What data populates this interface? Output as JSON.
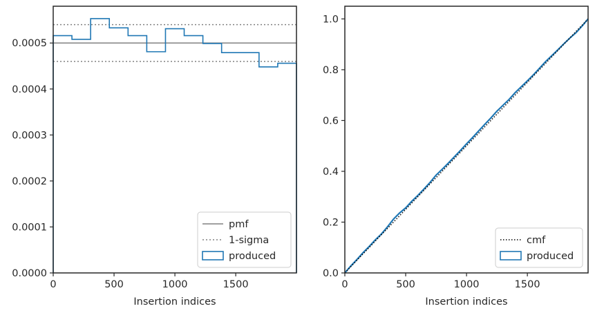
{
  "chart_data": [
    {
      "type": "line",
      "xlabel": "Insertion indices",
      "ylabel": "",
      "xlim": [
        0,
        1999
      ],
      "ylim": [
        0,
        0.00058
      ],
      "x_ticks": [
        0,
        500,
        1000,
        1500
      ],
      "x_tick_labels": [
        "0",
        "500",
        "1000",
        "1500"
      ],
      "y_ticks": [
        0,
        0.0001,
        0.0002,
        0.0003,
        0.0004,
        0.0005
      ],
      "y_tick_labels": [
        "0.0000",
        "0.0001",
        "0.0002",
        "0.0003",
        "0.0004",
        "0.0005"
      ],
      "grid": false,
      "legend": {
        "location": "lower-right",
        "entries": [
          "pmf",
          "1-sigma",
          "produced"
        ]
      },
      "pmf": {
        "name": "pmf",
        "value": 0.0005,
        "color": "#808080"
      },
      "sigma": {
        "name": "1-sigma",
        "values": [
          0.00046,
          0.00054
        ],
        "color": "#808080"
      },
      "histogram": {
        "name": "produced",
        "color": "#1f77b4",
        "bin_edges": [
          0,
          153.8,
          307.5,
          461.3,
          615,
          768.8,
          922.6,
          1076.3,
          1230.1,
          1383.8,
          1537.6,
          1691.4,
          1845.1,
          1999
        ],
        "values": [
          0.000516,
          0.000508,
          0.000553,
          0.000533,
          0.000516,
          0.000481,
          0.000531,
          0.000516,
          0.000499,
          0.000479,
          0.000479,
          0.000448,
          0.000456
        ]
      }
    },
    {
      "type": "line",
      "xlabel": "Insertion indices",
      "ylabel": "",
      "xlim": [
        0,
        1999
      ],
      "ylim": [
        0,
        1.05
      ],
      "x_ticks": [
        0,
        500,
        1000,
        1500
      ],
      "x_tick_labels": [
        "0",
        "500",
        "1000",
        "1500"
      ],
      "y_ticks": [
        0,
        0.2,
        0.4,
        0.6,
        0.8,
        1.0
      ],
      "y_tick_labels": [
        "0.0",
        "0.2",
        "0.4",
        "0.6",
        "0.8",
        "1.0"
      ],
      "grid": false,
      "legend": {
        "location": "lower-right",
        "entries": [
          "cmf",
          "produced"
        ]
      },
      "cmf": {
        "name": "cmf",
        "x": [
          0,
          1999
        ],
        "y": [
          0,
          1
        ],
        "color": "#000000"
      },
      "cumulative": {
        "name": "produced",
        "color": "#1f77b4",
        "x": [
          0,
          50,
          100,
          150,
          200,
          250,
          300,
          350,
          400,
          450,
          500,
          550,
          600,
          650,
          700,
          750,
          800,
          850,
          900,
          950,
          1000,
          1050,
          1100,
          1150,
          1200,
          1250,
          1300,
          1350,
          1400,
          1450,
          1500,
          1550,
          1600,
          1650,
          1700,
          1750,
          1800,
          1850,
          1900,
          1950,
          1999
        ],
        "y": [
          0,
          0.028,
          0.053,
          0.08,
          0.104,
          0.13,
          0.153,
          0.181,
          0.212,
          0.236,
          0.256,
          0.282,
          0.305,
          0.33,
          0.356,
          0.385,
          0.408,
          0.432,
          0.457,
          0.482,
          0.508,
          0.533,
          0.559,
          0.585,
          0.61,
          0.637,
          0.66,
          0.683,
          0.71,
          0.733,
          0.756,
          0.78,
          0.806,
          0.832,
          0.855,
          0.878,
          0.902,
          0.925,
          0.946,
          0.972,
          1.0
        ]
      }
    }
  ]
}
